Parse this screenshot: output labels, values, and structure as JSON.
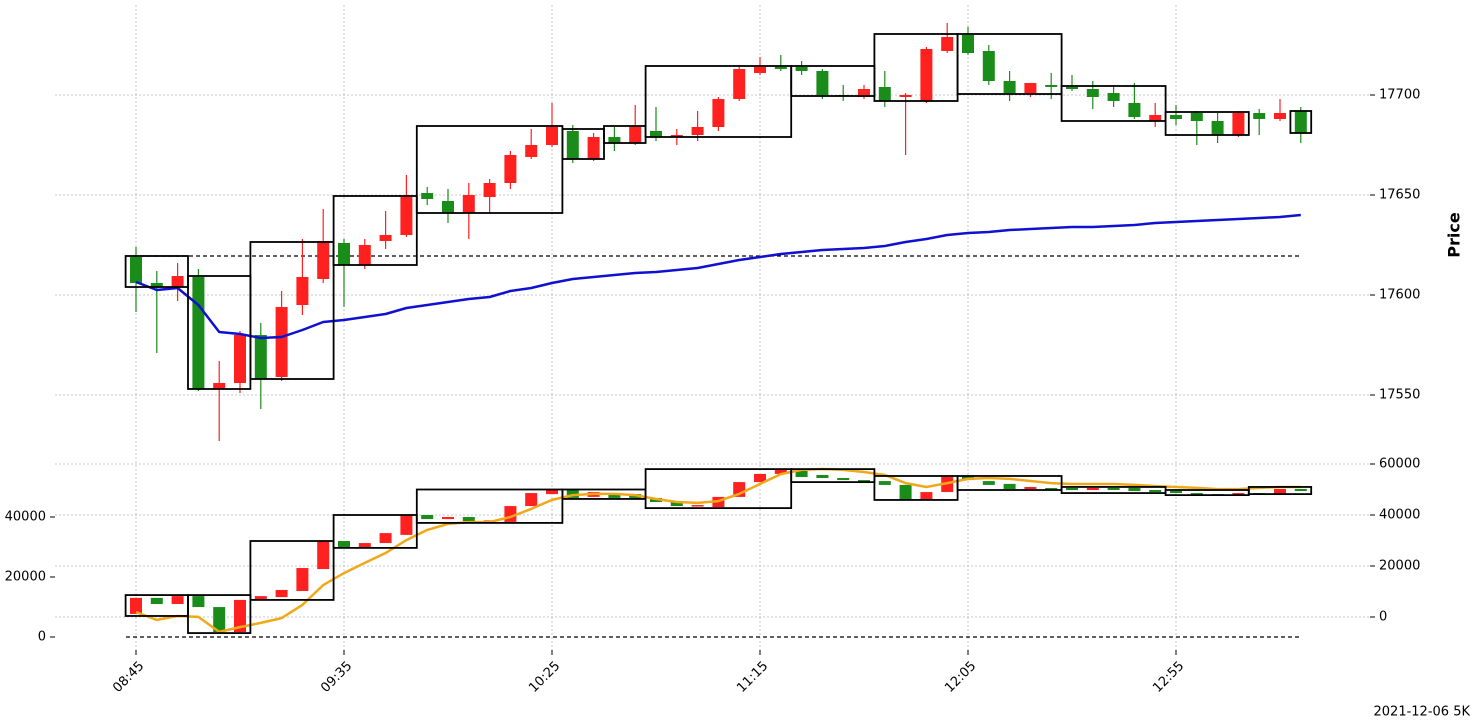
{
  "chart_data": [
    {
      "type": "candlestick",
      "y_label": "Price",
      "categories": [
        "08:45",
        null,
        null,
        null,
        null,
        null,
        null,
        null,
        null,
        null,
        "09:35",
        null,
        null,
        null,
        null,
        null,
        null,
        null,
        null,
        null,
        "10:25",
        null,
        null,
        null,
        null,
        null,
        null,
        null,
        null,
        null,
        "11:15",
        null,
        null,
        null,
        null,
        null,
        null,
        null,
        null,
        null,
        "12:05",
        null,
        null,
        null,
        null,
        null,
        null,
        null,
        null,
        null,
        "12:55",
        null,
        null,
        null,
        null,
        null,
        null
      ],
      "open": [
        17619,
        17606,
        17604,
        17609,
        17553,
        17556,
        17580,
        17559,
        17595,
        17608,
        17626,
        17615,
        17627,
        17630,
        17651,
        17647,
        17641,
        17649,
        17656,
        17669,
        17675,
        17682,
        17668,
        17679,
        17676,
        17682,
        17679,
        17680,
        17684,
        17698,
        17711,
        17714,
        17714,
        17712,
        17700,
        17699,
        17704,
        17699,
        17697,
        17722,
        17730,
        17722,
        17707,
        17701,
        17705,
        17704,
        17703,
        17701,
        17696,
        17687,
        17690,
        17691,
        17687,
        17680,
        17691,
        17688,
        17692
      ],
      "high": [
        17624,
        17612,
        17616,
        17613,
        17567,
        17582,
        17586,
        17602,
        17628,
        17643,
        17628,
        17628,
        17642,
        17660,
        17654,
        17653,
        17656,
        17658,
        17672,
        17683,
        17696,
        17685,
        17681,
        17684,
        17695,
        17694,
        17683,
        17692,
        17699,
        17714,
        17719,
        17720,
        17717,
        17713,
        17705,
        17705,
        17712,
        17701,
        17724,
        17736,
        17734,
        17725,
        17712,
        17706,
        17711,
        17710,
        17707,
        17705,
        17706,
        17696,
        17695,
        17692,
        17691,
        17692,
        17693,
        17698,
        17694
      ],
      "low": [
        17591.5,
        17571,
        17597,
        17552,
        17527,
        17551,
        17543,
        17557,
        17590,
        17606,
        17594,
        17613,
        17623,
        17629,
        17645,
        17636,
        17628,
        17641,
        17653,
        17668,
        17674,
        17666,
        17667,
        17672,
        17675,
        17677,
        17675,
        17677,
        17682,
        17697,
        17710,
        17712,
        17710,
        17698,
        17697,
        17698,
        17694,
        17670,
        17696,
        17721,
        17720,
        17705,
        17697,
        17699,
        17698,
        17702,
        17693,
        17694,
        17688,
        17684,
        17685,
        17675,
        17676,
        17679,
        17680,
        17687,
        17676
      ],
      "close": [
        17606,
        17604,
        17609.5,
        17553,
        17556,
        17580,
        17558,
        17594,
        17609,
        17627,
        17615,
        17625,
        17630,
        17649,
        17648,
        17641,
        17650,
        17656,
        17670,
        17675,
        17684,
        17668,
        17679,
        17676,
        17684,
        17679,
        17680,
        17684,
        17698,
        17713,
        17714,
        17713,
        17712,
        17700,
        17699.5,
        17703,
        17697,
        17700,
        17723,
        17729,
        17721,
        17707,
        17701,
        17706,
        17704,
        17703,
        17699,
        17697,
        17689,
        17690,
        17688,
        17687,
        17680,
        17691,
        17688,
        17691,
        17681
      ],
      "up_color": "#ff2020",
      "down_color": "#1a8c1a",
      "series": [
        {
          "color": "#1010d0",
          "values": [
            17606.5,
            17602.5,
            17603.5,
            17595,
            17581.5,
            17580.5,
            17578.5,
            17579,
            17582.5,
            17586.5,
            17587.5,
            17589,
            17590.5,
            17593.5,
            17595,
            17596.5,
            17598,
            17599,
            17602,
            17603.5,
            17606,
            17608,
            17609,
            17610,
            17611,
            17611.5,
            17612.5,
            17613.5,
            17615.5,
            17617.5,
            17619,
            17620.5,
            17621.5,
            17622.5,
            17623,
            17623.5,
            17624.5,
            17626.5,
            17628,
            17630,
            17631,
            17631.5,
            17632.5,
            17633,
            17633.5,
            17634,
            17634,
            17634.5,
            17635,
            17636,
            17636.5,
            17637,
            17637.5,
            17638,
            17638.5,
            17639,
            17640
          ]
        }
      ],
      "boxes": [
        {
          "first": 0,
          "last": 2,
          "high": 17619.5,
          "low": 17604
        },
        {
          "first": 3,
          "last": 5,
          "high": 17609.5,
          "low": 17553
        },
        {
          "first": 6,
          "last": 9,
          "high": 17626.5,
          "low": 17558
        },
        {
          "first": 10,
          "last": 13,
          "high": 17649.5,
          "low": 17615
        },
        {
          "first": 14,
          "last": 20,
          "high": 17684.5,
          "low": 17641
        },
        {
          "first": 21,
          "last": 22,
          "high": 17683,
          "low": 17668
        },
        {
          "first": 23,
          "last": 24,
          "high": 17684.5,
          "low": 17676
        },
        {
          "first": 25,
          "last": 31,
          "high": 17714.5,
          "low": 17679
        },
        {
          "first": 32,
          "last": 35,
          "high": 17714.5,
          "low": 17699.5
        },
        {
          "first": 36,
          "last": 39,
          "high": 17730.5,
          "low": 17697
        },
        {
          "first": 40,
          "last": 44,
          "high": 17730.5,
          "low": 17700.5
        },
        {
          "first": 45,
          "last": 49,
          "high": 17704.5,
          "low": 17687
        },
        {
          "first": 50,
          "last": 53,
          "high": 17691.5,
          "low": 17680
        },
        {
          "first": 56,
          "last": 56,
          "high": 17692,
          "low": 17681
        }
      ],
      "hline": 17619.5,
      "ylim": [
        17525,
        17745
      ],
      "yticks": [
        17550,
        17600,
        17650,
        17700
      ],
      "grid": true
    },
    {
      "type": "candlestick",
      "candle_axis": "y2",
      "open": [
        1200,
        7500,
        5100,
        8200,
        3900,
        -5900,
        6700,
        7800,
        10200,
        18800,
        29800,
        27100,
        29000,
        32200,
        40000,
        38400,
        39200,
        37600,
        37300,
        43500,
        48200,
        49800,
        47100,
        48600,
        48200,
        46700,
        45100,
        43500,
        43100,
        47100,
        52900,
        56100,
        57300,
        55700,
        54500,
        53700,
        53300,
        51800,
        45900,
        49000,
        55300,
        53300,
        52200,
        50200,
        50600,
        50600,
        49800,
        50600,
        50600,
        49800,
        49400,
        48600,
        48200,
        47800,
        48600,
        48200,
        50200
      ],
      "close": [
        7500,
        5100,
        8200,
        3900,
        -5900,
        6700,
        8200,
        10600,
        19200,
        29800,
        27100,
        29000,
        32900,
        40000,
        38400,
        39200,
        37600,
        37900,
        43500,
        48600,
        49800,
        46700,
        49000,
        46700,
        46700,
        45100,
        43500,
        43900,
        47100,
        52900,
        56100,
        58000,
        54900,
        54500,
        53700,
        53300,
        51800,
        45900,
        49000,
        55300,
        53700,
        51800,
        50200,
        51000,
        49800,
        49800,
        50600,
        49800,
        49400,
        49000,
        48600,
        48200,
        47800,
        48600,
        48200,
        50200,
        49400
      ],
      "up_color": "#ff2020",
      "down_color": "#1a8c1a",
      "series": [
        {
          "color": "#f0a818",
          "axis": "y",
          "values": [
            8300,
            5700,
            7000,
            6700,
            1700,
            3300,
            4700,
            6300,
            10700,
            17300,
            21300,
            24700,
            28000,
            32300,
            35700,
            37700,
            38300,
            38300,
            40000,
            42700,
            45700,
            47300,
            47700,
            47700,
            47300,
            46000,
            45000,
            44700,
            45300,
            47700,
            51000,
            54300,
            55700,
            56000,
            55700,
            55000,
            54000,
            51300,
            50000,
            51300,
            52700,
            53000,
            52700,
            52000,
            51300,
            51000,
            51000,
            51000,
            50700,
            50300,
            50000,
            49700,
            49300,
            49300,
            49700,
            50000,
            50000
          ]
        }
      ],
      "boxes": [
        {
          "first": 0,
          "last": 2,
          "high": 8600,
          "low": 400
        },
        {
          "first": 3,
          "last": 5,
          "high": 8600,
          "low": -6300
        },
        {
          "first": 6,
          "last": 9,
          "high": 29800,
          "low": 6700
        },
        {
          "first": 10,
          "last": 13,
          "high": 40000,
          "low": 27100
        },
        {
          "first": 14,
          "last": 20,
          "high": 50000,
          "low": 36900
        },
        {
          "first": 21,
          "last": 24,
          "high": 50000,
          "low": 46300
        },
        {
          "first": 25,
          "last": 31,
          "high": 58000,
          "low": 42700
        },
        {
          "first": 32,
          "last": 35,
          "high": 58000,
          "low": 52900
        },
        {
          "first": 36,
          "last": 39,
          "high": 55300,
          "low": 45900
        },
        {
          "first": 40,
          "last": 44,
          "high": 55300,
          "low": 49800
        },
        {
          "first": 45,
          "last": 49,
          "high": 51000,
          "low": 48600
        },
        {
          "first": 50,
          "last": 53,
          "high": 49800,
          "low": 47800
        },
        {
          "first": 54,
          "last": 56,
          "high": 51000,
          "low": 48200
        }
      ],
      "hline": 0,
      "ylim": [
        -4333,
        60667
      ],
      "yticks": [
        0,
        20000,
        40000
      ],
      "y2lim": [
        -12941,
        63529
      ],
      "y2ticks": [
        0,
        20000,
        40000,
        60000
      ],
      "grid": true
    }
  ],
  "footer": "2021-12-06 5K"
}
